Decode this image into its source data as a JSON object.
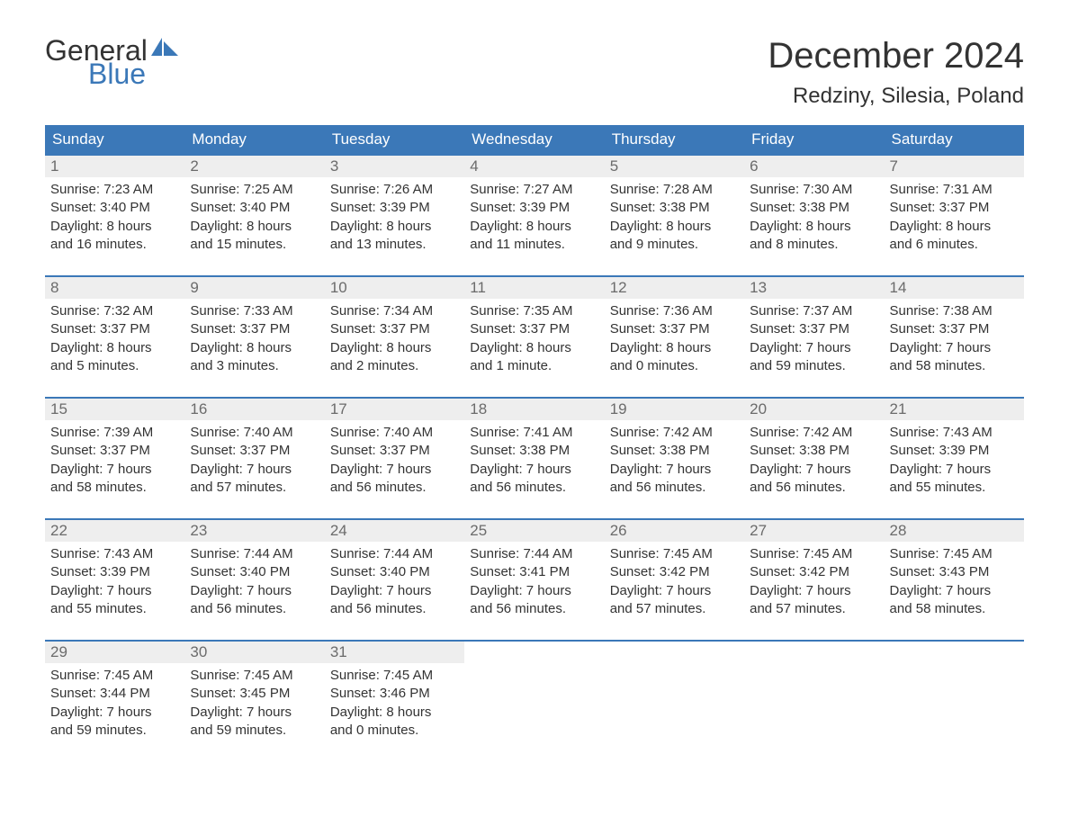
{
  "brand": {
    "text_general": "General",
    "text_blue": "Blue",
    "flag_color": "#3b78b8"
  },
  "title": {
    "month": "December 2024",
    "location": "Redziny, Silesia, Poland",
    "month_fontsize": 40,
    "location_fontsize": 24
  },
  "colors": {
    "header_bg": "#3b78b8",
    "header_text": "#ffffff",
    "daynum_bg": "#eeeeee",
    "daynum_text": "#6b6b6b",
    "body_text": "#333333",
    "week_border": "#3b78b8",
    "background": "#ffffff"
  },
  "day_labels": [
    "Sunday",
    "Monday",
    "Tuesday",
    "Wednesday",
    "Thursday",
    "Friday",
    "Saturday"
  ],
  "weeks": [
    [
      {
        "n": "1",
        "sunrise": "Sunrise: 7:23 AM",
        "sunset": "Sunset: 3:40 PM",
        "d1": "Daylight: 8 hours",
        "d2": "and 16 minutes."
      },
      {
        "n": "2",
        "sunrise": "Sunrise: 7:25 AM",
        "sunset": "Sunset: 3:40 PM",
        "d1": "Daylight: 8 hours",
        "d2": "and 15 minutes."
      },
      {
        "n": "3",
        "sunrise": "Sunrise: 7:26 AM",
        "sunset": "Sunset: 3:39 PM",
        "d1": "Daylight: 8 hours",
        "d2": "and 13 minutes."
      },
      {
        "n": "4",
        "sunrise": "Sunrise: 7:27 AM",
        "sunset": "Sunset: 3:39 PM",
        "d1": "Daylight: 8 hours",
        "d2": "and 11 minutes."
      },
      {
        "n": "5",
        "sunrise": "Sunrise: 7:28 AM",
        "sunset": "Sunset: 3:38 PM",
        "d1": "Daylight: 8 hours",
        "d2": "and 9 minutes."
      },
      {
        "n": "6",
        "sunrise": "Sunrise: 7:30 AM",
        "sunset": "Sunset: 3:38 PM",
        "d1": "Daylight: 8 hours",
        "d2": "and 8 minutes."
      },
      {
        "n": "7",
        "sunrise": "Sunrise: 7:31 AM",
        "sunset": "Sunset: 3:37 PM",
        "d1": "Daylight: 8 hours",
        "d2": "and 6 minutes."
      }
    ],
    [
      {
        "n": "8",
        "sunrise": "Sunrise: 7:32 AM",
        "sunset": "Sunset: 3:37 PM",
        "d1": "Daylight: 8 hours",
        "d2": "and 5 minutes."
      },
      {
        "n": "9",
        "sunrise": "Sunrise: 7:33 AM",
        "sunset": "Sunset: 3:37 PM",
        "d1": "Daylight: 8 hours",
        "d2": "and 3 minutes."
      },
      {
        "n": "10",
        "sunrise": "Sunrise: 7:34 AM",
        "sunset": "Sunset: 3:37 PM",
        "d1": "Daylight: 8 hours",
        "d2": "and 2 minutes."
      },
      {
        "n": "11",
        "sunrise": "Sunrise: 7:35 AM",
        "sunset": "Sunset: 3:37 PM",
        "d1": "Daylight: 8 hours",
        "d2": "and 1 minute."
      },
      {
        "n": "12",
        "sunrise": "Sunrise: 7:36 AM",
        "sunset": "Sunset: 3:37 PM",
        "d1": "Daylight: 8 hours",
        "d2": "and 0 minutes."
      },
      {
        "n": "13",
        "sunrise": "Sunrise: 7:37 AM",
        "sunset": "Sunset: 3:37 PM",
        "d1": "Daylight: 7 hours",
        "d2": "and 59 minutes."
      },
      {
        "n": "14",
        "sunrise": "Sunrise: 7:38 AM",
        "sunset": "Sunset: 3:37 PM",
        "d1": "Daylight: 7 hours",
        "d2": "and 58 minutes."
      }
    ],
    [
      {
        "n": "15",
        "sunrise": "Sunrise: 7:39 AM",
        "sunset": "Sunset: 3:37 PM",
        "d1": "Daylight: 7 hours",
        "d2": "and 58 minutes."
      },
      {
        "n": "16",
        "sunrise": "Sunrise: 7:40 AM",
        "sunset": "Sunset: 3:37 PM",
        "d1": "Daylight: 7 hours",
        "d2": "and 57 minutes."
      },
      {
        "n": "17",
        "sunrise": "Sunrise: 7:40 AM",
        "sunset": "Sunset: 3:37 PM",
        "d1": "Daylight: 7 hours",
        "d2": "and 56 minutes."
      },
      {
        "n": "18",
        "sunrise": "Sunrise: 7:41 AM",
        "sunset": "Sunset: 3:38 PM",
        "d1": "Daylight: 7 hours",
        "d2": "and 56 minutes."
      },
      {
        "n": "19",
        "sunrise": "Sunrise: 7:42 AM",
        "sunset": "Sunset: 3:38 PM",
        "d1": "Daylight: 7 hours",
        "d2": "and 56 minutes."
      },
      {
        "n": "20",
        "sunrise": "Sunrise: 7:42 AM",
        "sunset": "Sunset: 3:38 PM",
        "d1": "Daylight: 7 hours",
        "d2": "and 56 minutes."
      },
      {
        "n": "21",
        "sunrise": "Sunrise: 7:43 AM",
        "sunset": "Sunset: 3:39 PM",
        "d1": "Daylight: 7 hours",
        "d2": "and 55 minutes."
      }
    ],
    [
      {
        "n": "22",
        "sunrise": "Sunrise: 7:43 AM",
        "sunset": "Sunset: 3:39 PM",
        "d1": "Daylight: 7 hours",
        "d2": "and 55 minutes."
      },
      {
        "n": "23",
        "sunrise": "Sunrise: 7:44 AM",
        "sunset": "Sunset: 3:40 PM",
        "d1": "Daylight: 7 hours",
        "d2": "and 56 minutes."
      },
      {
        "n": "24",
        "sunrise": "Sunrise: 7:44 AM",
        "sunset": "Sunset: 3:40 PM",
        "d1": "Daylight: 7 hours",
        "d2": "and 56 minutes."
      },
      {
        "n": "25",
        "sunrise": "Sunrise: 7:44 AM",
        "sunset": "Sunset: 3:41 PM",
        "d1": "Daylight: 7 hours",
        "d2": "and 56 minutes."
      },
      {
        "n": "26",
        "sunrise": "Sunrise: 7:45 AM",
        "sunset": "Sunset: 3:42 PM",
        "d1": "Daylight: 7 hours",
        "d2": "and 57 minutes."
      },
      {
        "n": "27",
        "sunrise": "Sunrise: 7:45 AM",
        "sunset": "Sunset: 3:42 PM",
        "d1": "Daylight: 7 hours",
        "d2": "and 57 minutes."
      },
      {
        "n": "28",
        "sunrise": "Sunrise: 7:45 AM",
        "sunset": "Sunset: 3:43 PM",
        "d1": "Daylight: 7 hours",
        "d2": "and 58 minutes."
      }
    ],
    [
      {
        "n": "29",
        "sunrise": "Sunrise: 7:45 AM",
        "sunset": "Sunset: 3:44 PM",
        "d1": "Daylight: 7 hours",
        "d2": "and 59 minutes."
      },
      {
        "n": "30",
        "sunrise": "Sunrise: 7:45 AM",
        "sunset": "Sunset: 3:45 PM",
        "d1": "Daylight: 7 hours",
        "d2": "and 59 minutes."
      },
      {
        "n": "31",
        "sunrise": "Sunrise: 7:45 AM",
        "sunset": "Sunset: 3:46 PM",
        "d1": "Daylight: 8 hours",
        "d2": "and 0 minutes."
      },
      null,
      null,
      null,
      null
    ]
  ]
}
